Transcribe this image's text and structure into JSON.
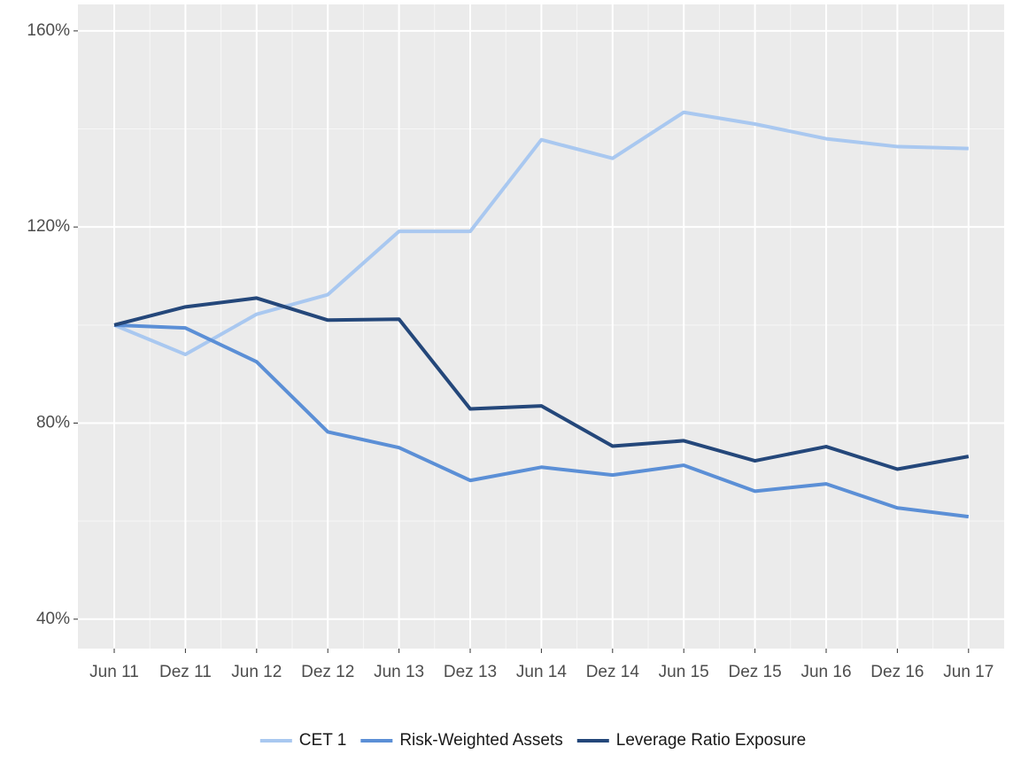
{
  "chart_data": {
    "type": "line",
    "categories": [
      "Jun 11",
      "Dez 11",
      "Jun 12",
      "Dez 12",
      "Jun 13",
      "Dez 13",
      "Jun 14",
      "Dez 14",
      "Jun 15",
      "Dez 15",
      "Jun 16",
      "Dez 16",
      "Jun 17"
    ],
    "series": [
      {
        "name": "CET 1",
        "color": "#a9c8f0",
        "values": [
          100,
          94,
          102.2,
          106.2,
          119.1,
          119.1,
          137.8,
          134.0,
          143.4,
          141.0,
          138.0,
          136.4,
          136.0
        ]
      },
      {
        "name": "Risk-Weighted Assets",
        "color": "#5b8fd6",
        "values": [
          100,
          99.4,
          92.5,
          78.2,
          75.0,
          68.3,
          71.0,
          69.4,
          71.4,
          66.1,
          67.6,
          62.7,
          60.9
        ]
      },
      {
        "name": "Leverage Ratio Exposure",
        "color": "#24477a",
        "values": [
          100,
          103.7,
          105.5,
          101.0,
          101.2,
          82.9,
          83.5,
          75.3,
          76.4,
          72.3,
          75.2,
          70.6,
          73.2
        ]
      }
    ],
    "ylim": [
      34,
      165.4
    ],
    "yticks": [
      {
        "value": 40,
        "label": "40%"
      },
      {
        "value": 80,
        "label": "80%"
      },
      {
        "value": 120,
        "label": "120%"
      },
      {
        "value": 160,
        "label": "160%"
      }
    ],
    "grid": true,
    "legend": "bottom"
  }
}
